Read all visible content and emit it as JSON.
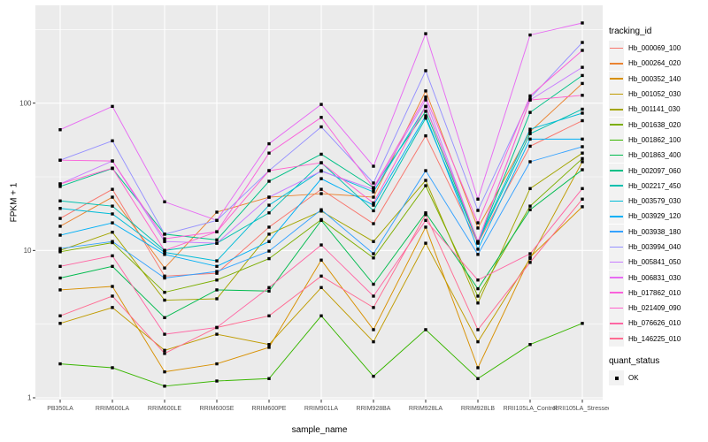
{
  "chart_data": {
    "type": "line",
    "xlabel": "sample_name",
    "ylabel": "FPKM + 1",
    "y_scale": "log10",
    "y_ticks": [
      1,
      10,
      100
    ],
    "ylim": [
      1,
      460
    ],
    "grid": true,
    "legend_position": "right",
    "legend_title": "tracking_id",
    "categories": [
      "PB350LA",
      "RRIM600LA",
      "RRIM600LE",
      "RRIM600SE",
      "RRIM600PE",
      "RRIM901LA",
      "RRIM928BA",
      "RRIM928LA",
      "RRIM928LB",
      "RRII105LA_Control",
      "RRII105LA_Stressed"
    ],
    "series": [
      {
        "name": "Hb_000069_100",
        "color": "#F8766D",
        "values": [
          16.5,
          26,
          6.7,
          7.0,
          14.4,
          26,
          15.2,
          60,
          11.2,
          51,
          76
        ]
      },
      {
        "name": "Hb_000264_020",
        "color": "#EA8331",
        "values": [
          14.6,
          23,
          7.6,
          18.2,
          23,
          24.3,
          23,
          121,
          14.2,
          64,
          136
        ]
      },
      {
        "name": "Hb_000352_140",
        "color": "#D89000",
        "values": [
          5.4,
          5.7,
          1.5,
          1.7,
          2.2,
          8.6,
          2.9,
          14.4,
          1.6,
          9.0,
          19.8
        ]
      },
      {
        "name": "Hb_001052_030",
        "color": "#C09B00",
        "values": [
          3.2,
          4.1,
          2.1,
          2.7,
          2.3,
          5.6,
          2.4,
          11.2,
          2.4,
          8.8,
          40
        ]
      },
      {
        "name": "Hb_001141_030",
        "color": "#A3A500",
        "values": [
          10.0,
          13.3,
          4.6,
          4.7,
          12.9,
          18.5,
          11.5,
          29.9,
          4.4,
          26.3,
          45.8
        ]
      },
      {
        "name": "Hb_001638_020",
        "color": "#7CAE00",
        "values": [
          9.8,
          11.3,
          5.2,
          6.3,
          8.8,
          16.2,
          8.9,
          27.5,
          4.9,
          20,
          42
        ]
      },
      {
        "name": "Hb_001862_100",
        "color": "#39B600",
        "values": [
          1.7,
          1.6,
          1.2,
          1.3,
          1.35,
          3.6,
          1.4,
          2.9,
          1.35,
          2.3,
          3.2
        ]
      },
      {
        "name": "Hb_001863_400",
        "color": "#00BB4E",
        "values": [
          6.5,
          7.8,
          3.5,
          5.4,
          5.3,
          16,
          5.9,
          18,
          5.5,
          18.9,
          35.3
        ]
      },
      {
        "name": "Hb_002097_060",
        "color": "#00C087",
        "values": [
          27.2,
          36,
          12.9,
          11.8,
          29.5,
          45,
          26.7,
          88,
          11.4,
          86.5,
          154
        ]
      },
      {
        "name": "Hb_002217_450",
        "color": "#00C0AF",
        "values": [
          21.7,
          20,
          10,
          11.2,
          18,
          39.4,
          18.6,
          79,
          11.3,
          62,
          91
        ]
      },
      {
        "name": "Hb_003579_030",
        "color": "#00BCD8",
        "values": [
          19.3,
          17.7,
          9.7,
          8.5,
          20.3,
          34.8,
          25,
          95,
          11.5,
          66.5,
          85.5
        ]
      },
      {
        "name": "Hb_003929_120",
        "color": "#00B0F6",
        "values": [
          12.7,
          15.4,
          9.4,
          7.8,
          11.5,
          30.7,
          20.3,
          82,
          10.2,
          57,
          57
        ]
      },
      {
        "name": "Hb_003938_180",
        "color": "#35A2FF",
        "values": [
          10.3,
          11.5,
          6.5,
          7.2,
          9.9,
          18.9,
          9.5,
          34.8,
          9.4,
          40,
          50.6
        ]
      },
      {
        "name": "Hb_003994_040",
        "color": "#9590FF",
        "values": [
          41,
          55.5,
          12.9,
          16,
          34.8,
          69,
          28.7,
          166,
          18.7,
          108,
          258
        ]
      },
      {
        "name": "Hb_005841_050",
        "color": "#C77CFF",
        "values": [
          28.3,
          40.5,
          11.5,
          11.2,
          23,
          34.5,
          26,
          105,
          11.4,
          105,
          175
        ]
      },
      {
        "name": "Hb_006831_030",
        "color": "#E76BF3",
        "values": [
          66,
          95,
          21.4,
          16,
          53,
          98,
          37.3,
          296,
          22.3,
          290,
          350
        ]
      },
      {
        "name": "Hb_017862_010",
        "color": "#FA62DB",
        "values": [
          41,
          40.5,
          12,
          13.4,
          45.8,
          80,
          26.7,
          110,
          15.4,
          112,
          228
        ]
      },
      {
        "name": "Hb_021409_090",
        "color": "#FF61CC",
        "values": [
          28.3,
          36.2,
          10,
          13.4,
          34.8,
          39.4,
          21,
          95,
          11.5,
          105,
          113
        ]
      },
      {
        "name": "Hb_076626_010",
        "color": "#FF67A4",
        "values": [
          7.8,
          9.2,
          2.7,
          3.0,
          5.6,
          10.9,
          4.9,
          16,
          6.3,
          9.5,
          26.3
        ]
      },
      {
        "name": "Hb_146225_010",
        "color": "#FF6C92",
        "values": [
          3.6,
          4.9,
          2.0,
          3.0,
          3.6,
          6.7,
          4.1,
          17.5,
          2.9,
          8.3,
          22.3
        ]
      }
    ],
    "legend2": {
      "title": "quant_status",
      "items": [
        "OK"
      ]
    },
    "colors": {
      "panel_bg": "#EBEBEB",
      "grid": "#FFFFFF",
      "tick_text": "#4D4D4D",
      "tick_mark": "#333333",
      "point": "#000000",
      "legend_key_bg": "#F2F2F2"
    }
  }
}
